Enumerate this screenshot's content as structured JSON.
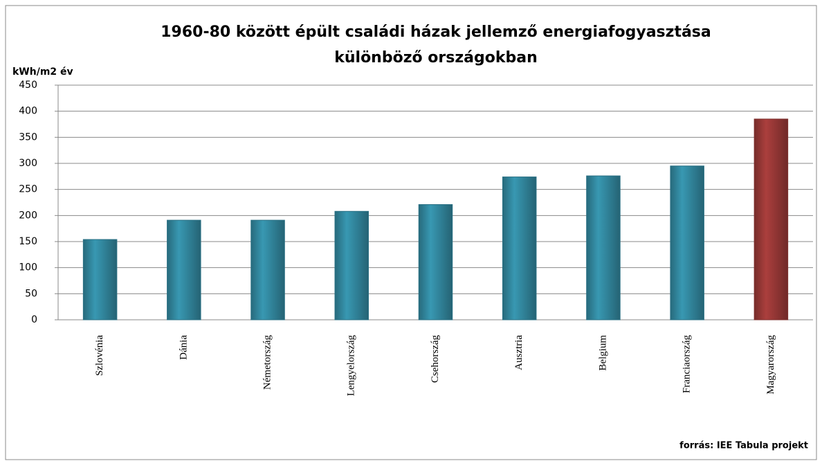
{
  "chart_data": {
    "type": "bar",
    "title": [
      "1960-80 között épült családi házak jellemző energiafogyasztása",
      "különböző országokban"
    ],
    "y_label": "kWh/m2 év",
    "note": "forrás: IEE Tabula projekt",
    "categories": [
      "Szlovénia",
      "Dánia",
      "Németország",
      "Lengyelország",
      "Csehország",
      "Ausztria",
      "Belgium",
      "Franciaország",
      "Magyarország"
    ],
    "values": [
      154,
      191,
      191,
      208,
      221,
      274,
      276,
      295,
      385
    ],
    "colors": [
      "#31849b",
      "#31849b",
      "#31849b",
      "#31849b",
      "#31849b",
      "#31849b",
      "#31849b",
      "#31849b",
      "#953735"
    ],
    "ylim": [
      0,
      450
    ],
    "yticks": [
      0,
      50,
      100,
      150,
      200,
      250,
      300,
      350,
      400,
      450
    ],
    "grid": true
  }
}
